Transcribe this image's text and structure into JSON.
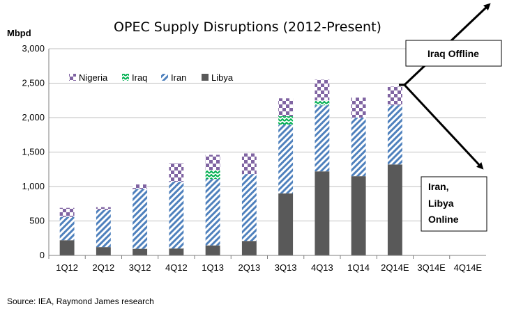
{
  "chart_data": {
    "type": "bar",
    "stacked": true,
    "title": "OPEC Supply Disruptions (2012-Present)",
    "ylabel": "Mbpd",
    "ylim": [
      0,
      3000
    ],
    "yticks": [
      "0",
      "500",
      "1,000",
      "1,500",
      "2,000",
      "2,500",
      "3,000"
    ],
    "grid": true,
    "legend_position": "top-left",
    "categories": [
      "1Q12",
      "2Q12",
      "3Q12",
      "4Q12",
      "1Q13",
      "2Q13",
      "3Q13",
      "4Q13",
      "1Q14",
      "2Q14E",
      "3Q14E",
      "4Q14E"
    ],
    "series": [
      {
        "name": "Libya",
        "color": "#595959",
        "pattern": "solid",
        "values": [
          220,
          120,
          95,
          100,
          145,
          210,
          900,
          1220,
          1150,
          1320,
          0,
          0
        ]
      },
      {
        "name": "Iran",
        "color": "#4f81bd",
        "pattern": "diagonal-stripes",
        "values": [
          340,
          540,
          870,
          970,
          965,
          970,
          1000,
          960,
          850,
          860,
          0,
          0
        ]
      },
      {
        "name": "Iraq",
        "color": "#00b050",
        "pattern": "zigzag",
        "values": [
          0,
          0,
          0,
          0,
          130,
          0,
          120,
          70,
          0,
          0,
          0,
          0
        ]
      },
      {
        "name": "Nigeria",
        "color": "#8064a2",
        "pattern": "checkerboard",
        "values": [
          130,
          40,
          65,
          270,
          220,
          300,
          260,
          300,
          290,
          270,
          0,
          0
        ]
      }
    ],
    "legend_order": [
      "Nigeria",
      "Iraq",
      "Iran",
      "Libya"
    ]
  },
  "annotations": {
    "iraq_box": "Iraq Offline",
    "iran_box_lines": [
      "Iran,",
      "Libya",
      "Online"
    ]
  },
  "source": "Source: IEA, Raymond James research"
}
